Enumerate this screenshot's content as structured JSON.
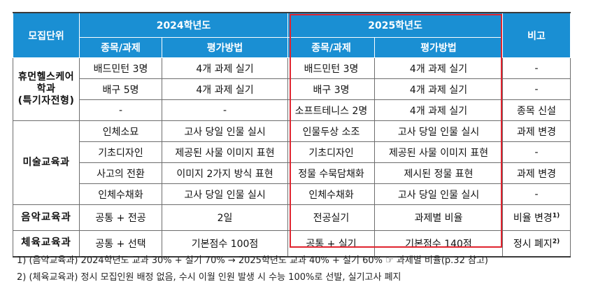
{
  "header": {
    "unit": "모집단위",
    "year2024": "2024학년도",
    "year2025": "2025학년도",
    "remark": "비고",
    "event": "종목/과제",
    "method": "평가방법"
  },
  "rows": [
    {
      "dept": "휴먼헬스케어학과\n(특기자전형)",
      "e24": "배드민턴 3명",
      "m24": "4개 과제 실기",
      "e25": "배드민턴 3명",
      "m25": "4개 과제 실기",
      "remark": "-"
    },
    {
      "e24": "배구 5명",
      "m24": "4개 과제 실기",
      "e25": "배구 3명",
      "m25": "4개 과제 실기",
      "remark": "-"
    },
    {
      "e24": "-",
      "m24": "-",
      "e25": "소프트테니스 2명",
      "m25": "4개 과제 실기",
      "remark": "종목 신설"
    },
    {
      "dept": "미술교육과",
      "e24": "인체소묘",
      "m24": "고사 당일 인물 실시",
      "e25": "인물두상 소조",
      "m25": "고사 당일 인물 실시",
      "remark": "과제 변경"
    },
    {
      "e24": "기초디자인",
      "m24": "제공된 사물 이미지 표현",
      "e25": "기초디자인",
      "m25": "제공된 사물 이미지 표현",
      "remark": "-"
    },
    {
      "e24": "사고의 전환",
      "m24": "이미지 2가지 방식 표현",
      "e25": "정물 수묵담채화",
      "m25": "제시된 정물 표현",
      "remark": "과제 변경"
    },
    {
      "e24": "인체수채화",
      "m24": "고사 당일 인물 실시",
      "e25": "인체수채화",
      "m25": "고사 당일 인물 실시",
      "remark": "-"
    },
    {
      "dept": "음악교육과",
      "e24": "공통 + 전공",
      "m24": "2일",
      "e25": "전공실기",
      "m25": "과제별 비율",
      "remark": "비율 변경",
      "remark_sup": "1)"
    },
    {
      "dept": "체육교육과",
      "e24": "공통 + 선택",
      "m24": "기본점수 100점",
      "e25": "공통 + 실기",
      "m25": "기본점수 140점",
      "remark": "정시 폐지",
      "remark_sup": "2)"
    }
  ],
  "notes": [
    "1) (음악교육과) 2024학년도 교과 30% + 실기 70% → 2025학년도 교과 40% + 실기 60% ☞ 과제별 비율(p.32 참고)",
    "2) (체육교육과) 정시 모집인원 배정 없음, 수시 이월 인원 발생 시 수능 100%로 선발, 실기고사 폐지"
  ],
  "colors": {
    "header_bg": "#1a8fd3",
    "highlight_border": "#e0242f"
  }
}
